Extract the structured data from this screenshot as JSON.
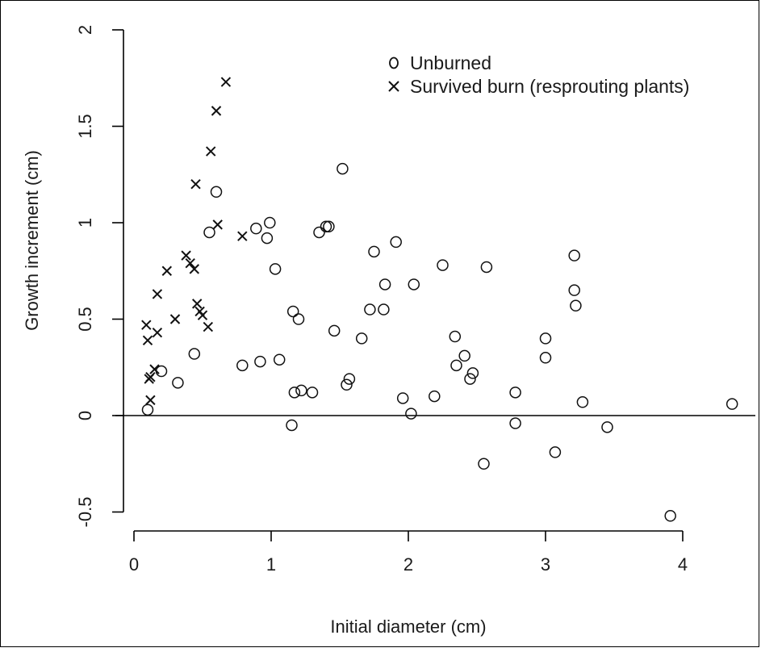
{
  "chart_data": {
    "type": "scatter",
    "xlabel": "Initial diameter (cm)",
    "ylabel": "Growth increment (cm)",
    "xlim": [
      0,
      4.5
    ],
    "ylim": [
      -0.5,
      2
    ],
    "x_ticks": [
      "0",
      "1",
      "2",
      "3",
      "4"
    ],
    "y_ticks": [
      "-0.5",
      "0",
      "0.5",
      "1",
      "1.5",
      "2"
    ],
    "legend_position": "top-right",
    "reference_line_y": 0,
    "series": [
      {
        "name": "Unburned",
        "marker": "o",
        "points": [
          [
            0.1,
            0.03
          ],
          [
            0.2,
            0.23
          ],
          [
            0.32,
            0.17
          ],
          [
            0.44,
            0.32
          ],
          [
            0.55,
            0.95
          ],
          [
            0.6,
            1.16
          ],
          [
            0.79,
            0.26
          ],
          [
            0.89,
            0.97
          ],
          [
            0.92,
            0.28
          ],
          [
            0.97,
            0.92
          ],
          [
            0.99,
            1.0
          ],
          [
            1.03,
            0.76
          ],
          [
            1.06,
            0.29
          ],
          [
            1.15,
            -0.05
          ],
          [
            1.16,
            0.54
          ],
          [
            1.17,
            0.12
          ],
          [
            1.2,
            0.5
          ],
          [
            1.22,
            0.13
          ],
          [
            1.3,
            0.12
          ],
          [
            1.35,
            0.95
          ],
          [
            1.4,
            0.98
          ],
          [
            1.42,
            0.98
          ],
          [
            1.46,
            0.44
          ],
          [
            1.52,
            1.28
          ],
          [
            1.55,
            0.16
          ],
          [
            1.57,
            0.19
          ],
          [
            1.66,
            0.4
          ],
          [
            1.72,
            0.55
          ],
          [
            1.75,
            0.85
          ],
          [
            1.82,
            0.55
          ],
          [
            1.83,
            0.68
          ],
          [
            1.91,
            0.9
          ],
          [
            1.96,
            0.09
          ],
          [
            2.02,
            0.01
          ],
          [
            2.04,
            0.68
          ],
          [
            2.19,
            0.1
          ],
          [
            2.25,
            0.78
          ],
          [
            2.34,
            0.41
          ],
          [
            2.35,
            0.26
          ],
          [
            2.41,
            0.31
          ],
          [
            2.45,
            0.19
          ],
          [
            2.47,
            0.22
          ],
          [
            2.55,
            -0.25
          ],
          [
            2.57,
            0.77
          ],
          [
            2.78,
            0.12
          ],
          [
            2.78,
            -0.04
          ],
          [
            3.0,
            0.4
          ],
          [
            3.0,
            0.3
          ],
          [
            3.07,
            -0.19
          ],
          [
            3.21,
            0.83
          ],
          [
            3.21,
            0.65
          ],
          [
            3.22,
            0.57
          ],
          [
            3.27,
            0.07
          ],
          [
            3.45,
            -0.06
          ],
          [
            3.91,
            -0.52
          ],
          [
            4.36,
            0.06
          ]
        ]
      },
      {
        "name": "Survived burn (resprouting plants)",
        "marker": "x",
        "points": [
          [
            0.09,
            0.47
          ],
          [
            0.1,
            0.39
          ],
          [
            0.11,
            0.19
          ],
          [
            0.12,
            0.2
          ],
          [
            0.12,
            0.08
          ],
          [
            0.15,
            0.24
          ],
          [
            0.17,
            0.63
          ],
          [
            0.17,
            0.43
          ],
          [
            0.24,
            0.75
          ],
          [
            0.3,
            0.5
          ],
          [
            0.38,
            0.83
          ],
          [
            0.41,
            0.79
          ],
          [
            0.44,
            0.76
          ],
          [
            0.45,
            1.2
          ],
          [
            0.46,
            0.58
          ],
          [
            0.48,
            0.54
          ],
          [
            0.5,
            0.52
          ],
          [
            0.54,
            0.46
          ],
          [
            0.56,
            1.37
          ],
          [
            0.6,
            1.58
          ],
          [
            0.61,
            0.99
          ],
          [
            0.67,
            1.73
          ],
          [
            0.79,
            0.93
          ]
        ]
      }
    ]
  }
}
